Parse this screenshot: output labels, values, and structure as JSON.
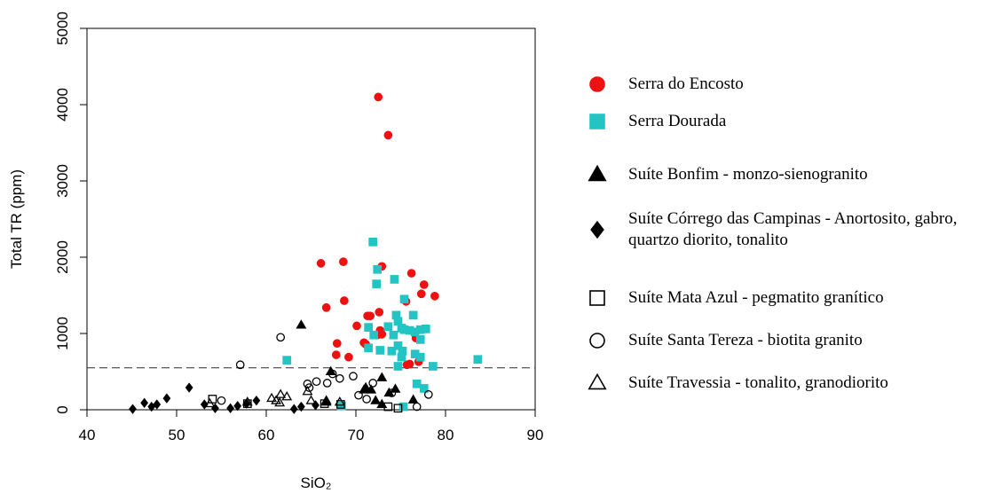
{
  "chart_data": {
    "type": "scatter",
    "xlabel": "SiO₂",
    "ylabel": "Total TR (ppm)",
    "xlim": [
      40,
      90
    ],
    "xticks": [
      40,
      50,
      60,
      70,
      80,
      90
    ],
    "ylim": [
      0,
      5000
    ],
    "yticks": [
      0,
      1000,
      2000,
      3000,
      4000,
      5000
    ],
    "reference_line": 550,
    "legend": "right",
    "series": [
      {
        "name": "Serra do Encosto",
        "color": "#ee1111",
        "marker": "circle",
        "filled": true,
        "x": [
          72.5,
          73.6,
          66.1,
          68.6,
          72.9,
          76.2,
          77.6,
          78.8,
          77.3,
          68.7,
          75.6,
          66.7,
          72.6,
          71.3,
          71.6,
          70.1,
          72.7,
          72.9,
          72.4,
          70.9,
          71.1,
          67.9,
          67.8,
          69.2,
          76.7,
          77.0,
          75.7,
          76.0
        ],
        "values": [
          4100,
          3600,
          1920,
          1940,
          1880,
          1790,
          1640,
          1490,
          1520,
          1430,
          1420,
          1340,
          1280,
          1230,
          1230,
          1100,
          1040,
          990,
          980,
          880,
          860,
          870,
          720,
          690,
          940,
          630,
          590,
          600
        ]
      },
      {
        "name": "Serra Dourada",
        "color": "#22c4c4",
        "marker": "square",
        "filled": true,
        "x": [
          71.9,
          72.4,
          72.3,
          74.3,
          75.4,
          76.4,
          74.5,
          74.7,
          71.4,
          73.6,
          75.1,
          75.4,
          76.0,
          76.6,
          77.2,
          77.8,
          72.0,
          74.2,
          77.2,
          74.7,
          71.4,
          72.7,
          74.0,
          75.2,
          76.6,
          77.2,
          75.1,
          62.3,
          83.6,
          74.7,
          78.6,
          76.8,
          77.6,
          68.4,
          75.3
        ],
        "values": [
          2200,
          1840,
          1650,
          1710,
          1450,
          1240,
          1240,
          1160,
          1080,
          1090,
          1070,
          1050,
          1040,
          1020,
          1050,
          1060,
          980,
          980,
          920,
          840,
          810,
          780,
          770,
          770,
          730,
          690,
          690,
          650,
          660,
          570,
          570,
          340,
          280,
          50,
          40
        ]
      },
      {
        "name": "Suíte Bonfim - monzo-sienogranito",
        "color": "#000000",
        "marker": "triangle",
        "filled": true,
        "x": [
          63.9,
          67.2,
          72.9,
          71.1,
          71.7,
          70.9,
          74.4,
          73.7,
          66.7,
          72.2,
          72.9,
          76.4
        ],
        "values": [
          1110,
          500,
          420,
          290,
          260,
          260,
          270,
          220,
          100,
          120,
          70,
          130
        ]
      },
      {
        "name": "Suíte Córrego das Campinas - Anortosito, gabro, quartzo diorito, tonalito",
        "color": "#000000",
        "marker": "diamond",
        "filled": true,
        "x": [
          45.1,
          46.4,
          47.2,
          47.8,
          48.9,
          51.4,
          53.1,
          54.3,
          56.0,
          56.8,
          57.8,
          58.9,
          63.1,
          63.9,
          65.5
        ],
        "values": [
          10,
          90,
          40,
          70,
          150,
          290,
          70,
          20,
          20,
          50,
          80,
          120,
          10,
          40,
          60
        ]
      },
      {
        "name": "Suíte Mata Azul - pegmatito granítico",
        "color": "#000000",
        "marker": "square",
        "filled": false,
        "x": [
          54.0,
          57.9,
          66.5,
          68.3,
          73.6,
          74.7
        ],
        "values": [
          140,
          80,
          80,
          70,
          40,
          20
        ]
      },
      {
        "name": "Suíte Santa Tereza - biotita granito",
        "color": "#000000",
        "marker": "circle",
        "filled": false,
        "x": [
          61.6,
          57.1,
          70.3,
          55.0,
          64.6,
          64.8,
          65.6,
          66.8,
          67.4,
          68.2,
          69.7,
          71.9,
          74.0,
          71.2,
          78.1,
          76.8
        ],
        "values": [
          950,
          590,
          190,
          120,
          340,
          290,
          370,
          350,
          470,
          410,
          440,
          350,
          220,
          140,
          200,
          40
        ]
      },
      {
        "name": "Suíte Travessia - tonalito, granodiorito",
        "color": "#000000",
        "marker": "triangle",
        "filled": false,
        "x": [
          53.7,
          57.9,
          60.6,
          61.1,
          61.6,
          62.3,
          61.5,
          64.6,
          65.0,
          66.7,
          68.2
        ],
        "values": [
          80,
          100,
          150,
          120,
          200,
          170,
          90,
          240,
          120,
          120,
          100
        ]
      }
    ]
  }
}
